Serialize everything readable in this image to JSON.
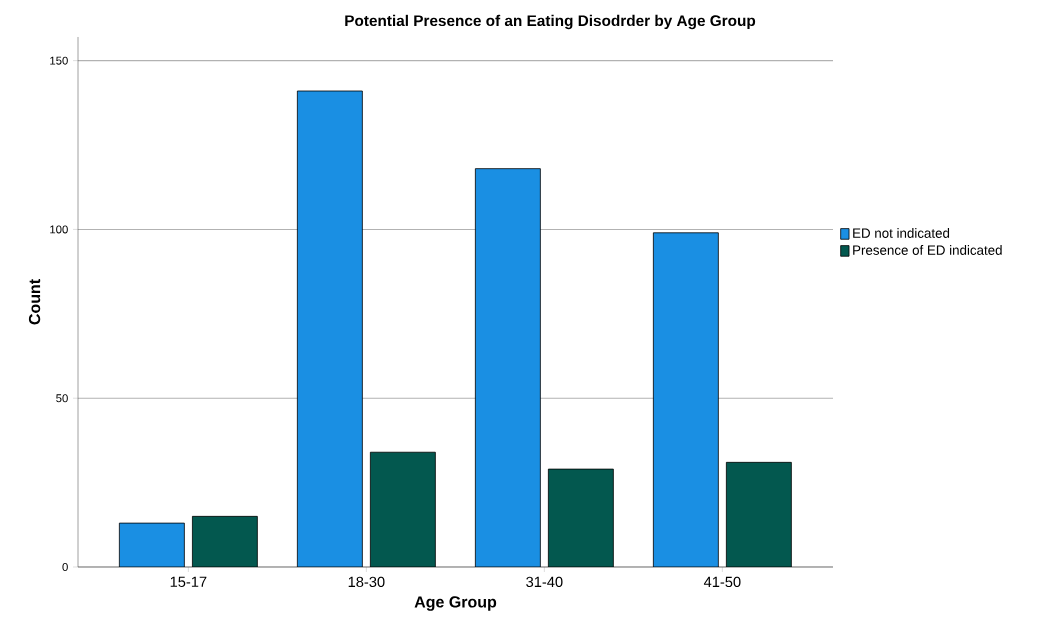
{
  "chart_data": {
    "type": "bar",
    "title": "Potential Presence of an Eating Disodrder by Age Group",
    "xlabel": "Age Group",
    "ylabel": "Count",
    "categories": [
      "15-17",
      "18-30",
      "31-40",
      "41-50"
    ],
    "series": [
      {
        "name": "ED not indicated",
        "color": "#1a8fe3",
        "values": [
          13,
          141,
          118,
          99
        ]
      },
      {
        "name": "Presence of ED indicated",
        "color": "#03584f",
        "values": [
          15,
          34,
          29,
          31
        ]
      }
    ],
    "ylim": [
      0,
      157
    ],
    "yticks": [
      0,
      50,
      100,
      150
    ],
    "grid": "y",
    "legend": "right"
  }
}
